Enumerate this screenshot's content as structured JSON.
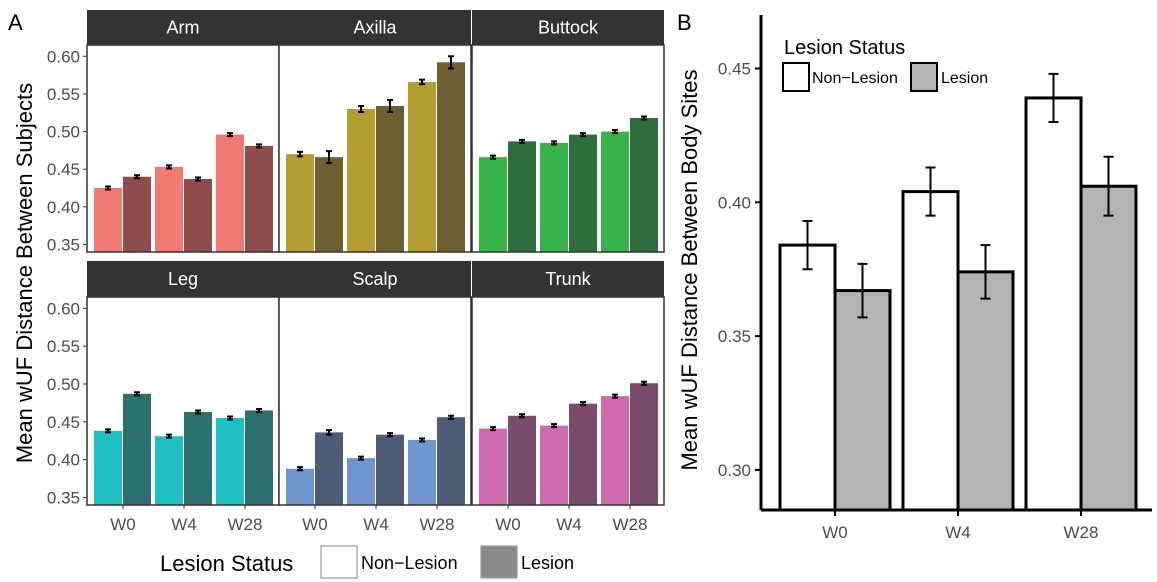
{
  "panel_labels": {
    "a": "A",
    "b": "B"
  },
  "legend_a": {
    "title": "Lesion Status",
    "items": [
      {
        "label": "Non−Lesion",
        "color": "#ffffff"
      },
      {
        "label": "Lesion",
        "color": "#8a8a8a"
      }
    ]
  },
  "legend_b": {
    "title": "Lesion Status",
    "items": [
      {
        "label": "Non−Lesion",
        "color": "#ffffff"
      },
      {
        "label": "Lesion",
        "color": "#b3b3b3"
      }
    ]
  },
  "chart_data": [
    {
      "type": "bar",
      "title": "",
      "ylabel": "Mean wUF Distance Between Subjects",
      "xlabel": "",
      "categories": [
        "W0",
        "W4",
        "W28"
      ],
      "ylim": [
        0.34,
        0.615
      ],
      "yticks": [
        "0.35",
        "0.40",
        "0.45",
        "0.50",
        "0.55",
        "0.60"
      ],
      "facets": [
        {
          "name": "Arm",
          "colors": {
            "nonlesion": "#f07a72",
            "lesion": "#8e4c4c"
          },
          "nonlesion": [
            0.425,
            0.453,
            0.496
          ],
          "nonlesion_err": [
            0.002,
            0.002,
            0.002
          ],
          "lesion": [
            0.44,
            0.437,
            0.481
          ],
          "lesion_err": [
            0.002,
            0.002,
            0.002
          ]
        },
        {
          "name": "Axilla",
          "colors": {
            "nonlesion": "#b39d2f",
            "lesion": "#6e5f30"
          },
          "nonlesion": [
            0.47,
            0.53,
            0.566
          ],
          "nonlesion_err": [
            0.003,
            0.004,
            0.003
          ],
          "lesion": [
            0.466,
            0.534,
            0.592
          ],
          "lesion_err": [
            0.008,
            0.008,
            0.008
          ]
        },
        {
          "name": "Buttock",
          "colors": {
            "nonlesion": "#37b34a",
            "lesion": "#2e6e3c"
          },
          "nonlesion": [
            0.466,
            0.485,
            0.5
          ],
          "nonlesion_err": [
            0.002,
            0.002,
            0.002
          ],
          "lesion": [
            0.487,
            0.496,
            0.518
          ],
          "lesion_err": [
            0.002,
            0.002,
            0.002
          ]
        },
        {
          "name": "Leg",
          "colors": {
            "nonlesion": "#1fbfc4",
            "lesion": "#2c7170"
          },
          "nonlesion": [
            0.438,
            0.431,
            0.455
          ],
          "nonlesion_err": [
            0.002,
            0.002,
            0.002
          ],
          "lesion": [
            0.487,
            0.463,
            0.465
          ],
          "lesion_err": [
            0.002,
            0.002,
            0.002
          ]
        },
        {
          "name": "Scalp",
          "colors": {
            "nonlesion": "#6f95cf",
            "lesion": "#4e5c78"
          },
          "nonlesion": [
            0.388,
            0.402,
            0.426
          ],
          "nonlesion_err": [
            0.002,
            0.002,
            0.002
          ],
          "lesion": [
            0.436,
            0.433,
            0.456
          ],
          "lesion_err": [
            0.003,
            0.002,
            0.002
          ]
        },
        {
          "name": "Trunk",
          "colors": {
            "nonlesion": "#cf6aaf",
            "lesion": "#7b4b6b"
          },
          "nonlesion": [
            0.441,
            0.445,
            0.484
          ],
          "nonlesion_err": [
            0.002,
            0.002,
            0.002
          ],
          "lesion": [
            0.458,
            0.474,
            0.501
          ],
          "lesion_err": [
            0.002,
            0.002,
            0.002
          ]
        }
      ]
    },
    {
      "type": "bar",
      "title": "",
      "ylabel": "Mean wUF Distance Between Body Sites",
      "xlabel": "",
      "categories": [
        "W0",
        "W4",
        "W28"
      ],
      "ylim": [
        0.285,
        0.47
      ],
      "yticks": [
        "0.30",
        "0.35",
        "0.40",
        "0.45"
      ],
      "series": [
        {
          "name": "Non−Lesion",
          "color": "#ffffff",
          "values": [
            0.384,
            0.404,
            0.439
          ],
          "err": [
            0.009,
            0.009,
            0.009
          ]
        },
        {
          "name": "Lesion",
          "color": "#b3b3b3",
          "values": [
            0.367,
            0.374,
            0.406
          ],
          "err": [
            0.01,
            0.01,
            0.011
          ]
        }
      ]
    }
  ]
}
